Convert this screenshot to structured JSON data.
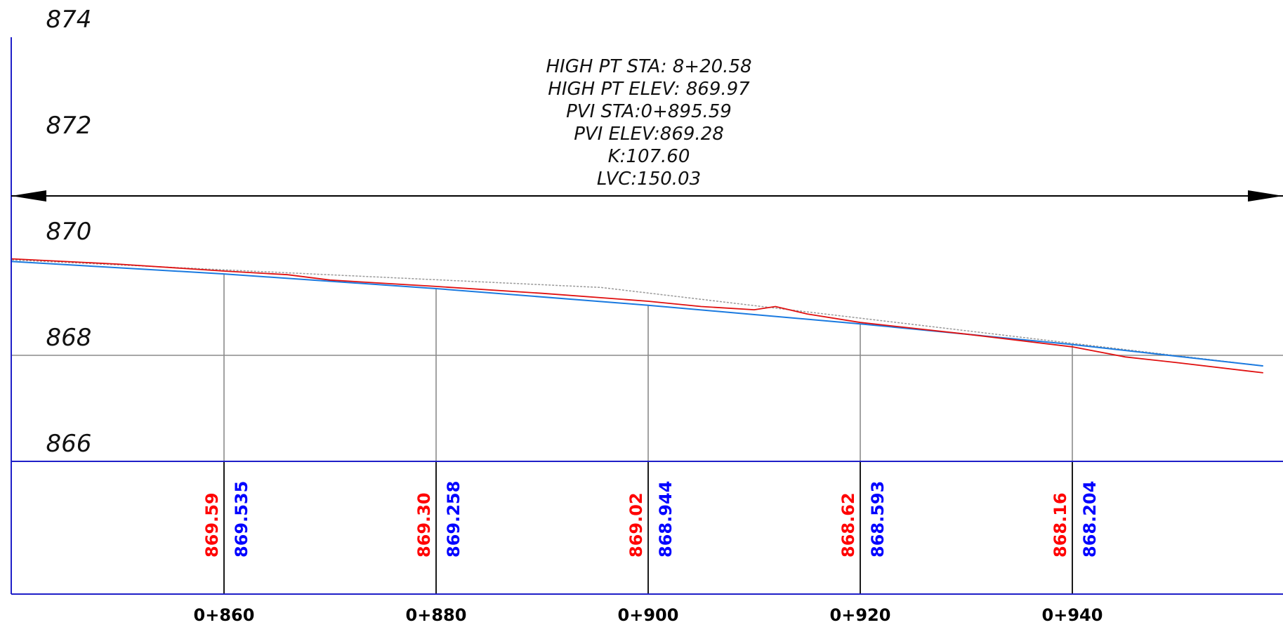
{
  "colors": {
    "frame": "#1f1fc8",
    "grid": "#8a8a8a",
    "existing_ground": "#e01010",
    "proposed_grade": "#1a7ae0",
    "tangent": "#999999",
    "dimension": "#000000",
    "existing_value": "#ff0000",
    "proposed_value": "#0000ff"
  },
  "chart_data": {
    "type": "profile",
    "elevation_labels": [
      "874",
      "872",
      "870",
      "868",
      "866"
    ],
    "elevation_values": [
      874,
      872,
      870,
      868,
      866
    ],
    "ylim": [
      866,
      874.6
    ],
    "xlim": [
      840,
      960
    ],
    "station_values": [
      860,
      880,
      900,
      920,
      940
    ],
    "station_labels": [
      "0+860",
      "0+880",
      "0+900",
      "0+920",
      "0+940"
    ],
    "existing_ground_values": [
      "869.59",
      "869.30",
      "869.02",
      "868.62",
      "868.16"
    ],
    "proposed_grade_values": [
      "869.535",
      "869.258",
      "868.944",
      "868.593",
      "868.204"
    ],
    "proposed_grade": [
      {
        "station": 840,
        "elev": 869.77
      },
      {
        "station": 860,
        "elev": 869.535
      },
      {
        "station": 880,
        "elev": 869.258
      },
      {
        "station": 900,
        "elev": 868.944
      },
      {
        "station": 920,
        "elev": 868.593
      },
      {
        "station": 940,
        "elev": 868.204
      },
      {
        "station": 958,
        "elev": 867.8
      }
    ],
    "existing_ground": [
      {
        "station": 840,
        "elev": 869.82
      },
      {
        "station": 850,
        "elev": 869.72
      },
      {
        "station": 860,
        "elev": 869.59
      },
      {
        "station": 866,
        "elev": 869.52
      },
      {
        "station": 870,
        "elev": 869.42
      },
      {
        "station": 880,
        "elev": 869.3
      },
      {
        "station": 890,
        "elev": 869.17
      },
      {
        "station": 900,
        "elev": 869.02
      },
      {
        "station": 905,
        "elev": 868.92
      },
      {
        "station": 910,
        "elev": 868.86
      },
      {
        "station": 912,
        "elev": 868.92
      },
      {
        "station": 915,
        "elev": 868.78
      },
      {
        "station": 920,
        "elev": 868.62
      },
      {
        "station": 930,
        "elev": 868.4
      },
      {
        "station": 940,
        "elev": 868.16
      },
      {
        "station": 945,
        "elev": 867.97
      },
      {
        "station": 950,
        "elev": 867.86
      },
      {
        "station": 958,
        "elev": 867.67
      }
    ],
    "tangent_line": [
      {
        "station": 840,
        "elev": 869.8
      },
      {
        "station": 895.59,
        "elev": 869.28
      },
      {
        "station": 958,
        "elev": 867.8
      }
    ],
    "vertical_curve": {
      "lines": [
        "HIGH PT STA: 8+20.58",
        "HIGH PT ELEV: 869.97",
        "PVI STA:0+895.59",
        "PVI ELEV:869.28",
        "K:107.60",
        "LVC:150.03"
      ]
    }
  }
}
